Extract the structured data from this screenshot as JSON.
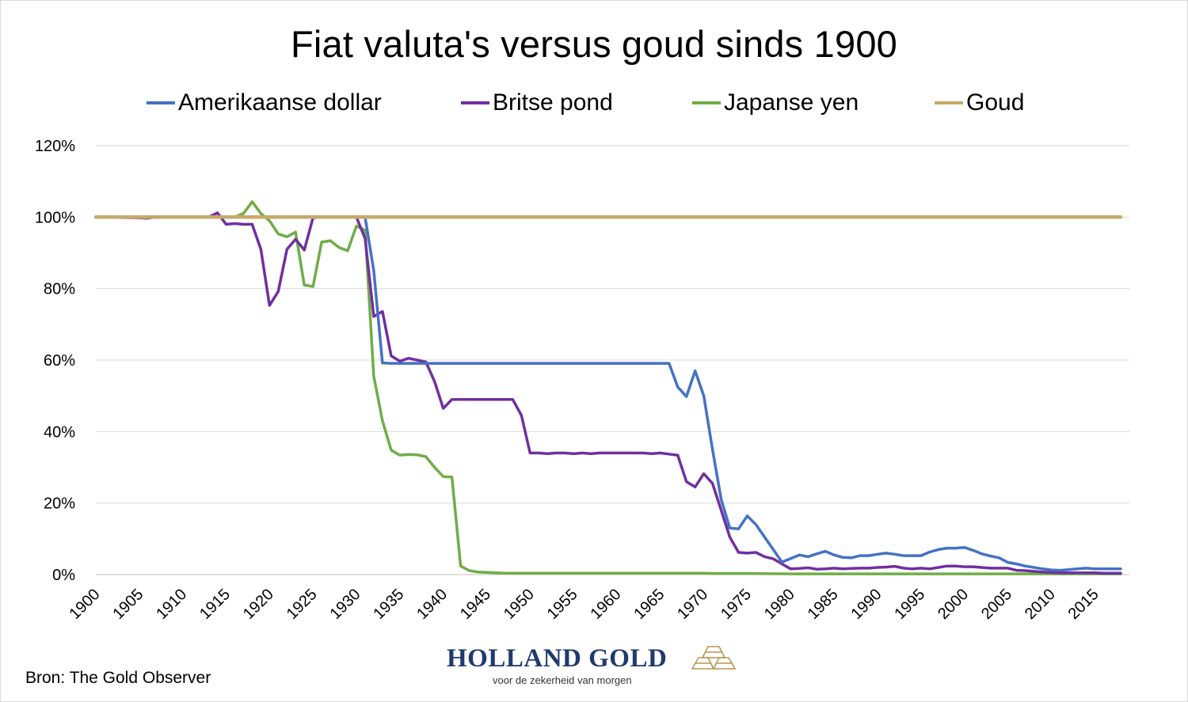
{
  "chart_data": {
    "type": "line",
    "title": "Fiat valuta's versus goud sinds 1900",
    "xlabel": "",
    "ylabel": "",
    "xlim": [
      1900,
      2019
    ],
    "ylim": [
      0,
      120
    ],
    "x_ticks": [
      "1900",
      "1905",
      "1910",
      "1915",
      "1920",
      "1925",
      "1930",
      "1935",
      "1940",
      "1945",
      "1950",
      "1955",
      "1960",
      "1965",
      "1970",
      "1975",
      "1980",
      "1985",
      "1990",
      "1995",
      "2000",
      "2005",
      "2010",
      "2015"
    ],
    "y_ticks": [
      "0%",
      "20%",
      "40%",
      "60%",
      "80%",
      "100%",
      "120%"
    ],
    "grid": true,
    "legend": "top",
    "series": [
      {
        "name": "Amerikaanse dollar",
        "color": "#4472c4",
        "points": [
          [
            1900,
            100
          ],
          [
            1931,
            100
          ],
          [
            1932,
            85
          ],
          [
            1933,
            59.2
          ],
          [
            1934,
            59.1
          ],
          [
            1966,
            59.1
          ],
          [
            1967,
            52.5
          ],
          [
            1968,
            49.8
          ],
          [
            1969,
            57
          ],
          [
            1970,
            50
          ],
          [
            1971,
            35
          ],
          [
            1972,
            21
          ],
          [
            1973,
            13
          ],
          [
            1974,
            12.8
          ],
          [
            1975,
            16.4
          ],
          [
            1976,
            14
          ],
          [
            1977,
            10.5
          ],
          [
            1978,
            7
          ],
          [
            1979,
            3.5
          ],
          [
            1980,
            4.5
          ],
          [
            1981,
            5.5
          ],
          [
            1982,
            5
          ],
          [
            1983,
            5.8
          ],
          [
            1984,
            6.5
          ],
          [
            1985,
            5.5
          ],
          [
            1986,
            4.8
          ],
          [
            1987,
            4.7
          ],
          [
            1988,
            5.3
          ],
          [
            1989,
            5.3
          ],
          [
            1990,
            5.7
          ],
          [
            1991,
            6
          ],
          [
            1992,
            5.7
          ],
          [
            1993,
            5.3
          ],
          [
            1994,
            5.3
          ],
          [
            1995,
            5.3
          ],
          [
            1996,
            6.3
          ],
          [
            1997,
            7
          ],
          [
            1998,
            7.4
          ],
          [
            1999,
            7.4
          ],
          [
            2000,
            7.6
          ],
          [
            2001,
            6.8
          ],
          [
            2002,
            5.8
          ],
          [
            2003,
            5.2
          ],
          [
            2004,
            4.7
          ],
          [
            2005,
            3.4
          ],
          [
            2006,
            3
          ],
          [
            2007,
            2.4
          ],
          [
            2008,
            2
          ],
          [
            2009,
            1.6
          ],
          [
            2010,
            1.3
          ],
          [
            2011,
            1.2
          ],
          [
            2012,
            1.4
          ],
          [
            2013,
            1.6
          ],
          [
            2014,
            1.8
          ],
          [
            2015,
            1.6
          ],
          [
            2016,
            1.6
          ],
          [
            2017,
            1.6
          ],
          [
            2018,
            1.6
          ]
        ]
      },
      {
        "name": "Britse pond",
        "color": "#7030a0",
        "points": [
          [
            1900,
            100
          ],
          [
            1905,
            99.8
          ],
          [
            1906,
            99.7
          ],
          [
            1907,
            100
          ],
          [
            1913,
            100
          ],
          [
            1914,
            101.2
          ],
          [
            1915,
            98
          ],
          [
            1916,
            98.2
          ],
          [
            1917,
            98
          ],
          [
            1918,
            98
          ],
          [
            1919,
            91
          ],
          [
            1920,
            75.3
          ],
          [
            1921,
            79.2
          ],
          [
            1922,
            91
          ],
          [
            1923,
            93.8
          ],
          [
            1924,
            90.8
          ],
          [
            1925,
            99.8
          ],
          [
            1926,
            100
          ],
          [
            1930,
            100
          ],
          [
            1931,
            94
          ],
          [
            1932,
            72.2
          ],
          [
            1933,
            73.6
          ],
          [
            1934,
            61.2
          ],
          [
            1935,
            59.7
          ],
          [
            1936,
            60.5
          ],
          [
            1937,
            60
          ],
          [
            1938,
            59.5
          ],
          [
            1939,
            54
          ],
          [
            1940,
            46.5
          ],
          [
            1941,
            49
          ],
          [
            1942,
            49
          ],
          [
            1948,
            49
          ],
          [
            1949,
            44.5
          ],
          [
            1950,
            34
          ],
          [
            1951,
            34
          ],
          [
            1952,
            33.8
          ],
          [
            1953,
            34
          ],
          [
            1954,
            34
          ],
          [
            1955,
            33.8
          ],
          [
            1956,
            34
          ],
          [
            1957,
            33.8
          ],
          [
            1958,
            34
          ],
          [
            1963,
            34
          ],
          [
            1964,
            33.8
          ],
          [
            1965,
            34
          ],
          [
            1966,
            33.7
          ],
          [
            1967,
            33.4
          ],
          [
            1968,
            26
          ],
          [
            1969,
            24.5
          ],
          [
            1970,
            28.2
          ],
          [
            1971,
            25.5
          ],
          [
            1972,
            18
          ],
          [
            1973,
            10.5
          ],
          [
            1974,
            6.2
          ],
          [
            1975,
            6
          ],
          [
            1976,
            6.2
          ],
          [
            1977,
            5
          ],
          [
            1978,
            4.4
          ],
          [
            1979,
            3
          ],
          [
            1980,
            1.6
          ],
          [
            1981,
            1.7
          ],
          [
            1982,
            1.9
          ],
          [
            1983,
            1.5
          ],
          [
            1984,
            1.6
          ],
          [
            1985,
            1.8
          ],
          [
            1986,
            1.6
          ],
          [
            1987,
            1.7
          ],
          [
            1988,
            1.8
          ],
          [
            1989,
            1.8
          ],
          [
            1990,
            2
          ],
          [
            1991,
            2.1
          ],
          [
            1992,
            2.3
          ],
          [
            1993,
            1.8
          ],
          [
            1994,
            1.6
          ],
          [
            1995,
            1.8
          ],
          [
            1996,
            1.6
          ],
          [
            1997,
            2
          ],
          [
            1998,
            2.4
          ],
          [
            1999,
            2.4
          ],
          [
            2000,
            2.2
          ],
          [
            2001,
            2.2
          ],
          [
            2002,
            2
          ],
          [
            2003,
            1.8
          ],
          [
            2004,
            1.8
          ],
          [
            2005,
            1.8
          ],
          [
            2006,
            1.2
          ],
          [
            2007,
            1.1
          ],
          [
            2008,
            0.9
          ],
          [
            2009,
            0.7
          ],
          [
            2010,
            0.6
          ],
          [
            2011,
            0.5
          ],
          [
            2012,
            0.5
          ],
          [
            2013,
            0.5
          ],
          [
            2014,
            0.5
          ],
          [
            2015,
            0.5
          ],
          [
            2016,
            0.4
          ],
          [
            2017,
            0.4
          ],
          [
            2018,
            0.4
          ]
        ]
      },
      {
        "name": "Japanse yen",
        "color": "#70ad47",
        "points": [
          [
            1900,
            100
          ],
          [
            1915,
            100
          ],
          [
            1916,
            100
          ],
          [
            1917,
            101
          ],
          [
            1918,
            104.3
          ],
          [
            1919,
            101
          ],
          [
            1920,
            99
          ],
          [
            1921,
            95.3
          ],
          [
            1922,
            94.5
          ],
          [
            1923,
            95.8
          ],
          [
            1924,
            81
          ],
          [
            1925,
            80.6
          ],
          [
            1926,
            93
          ],
          [
            1927,
            93.4
          ],
          [
            1928,
            91.5
          ],
          [
            1929,
            90.6
          ],
          [
            1930,
            97.5
          ],
          [
            1931,
            96.3
          ],
          [
            1932,
            55.5
          ],
          [
            1933,
            43
          ],
          [
            1934,
            34.8
          ],
          [
            1935,
            33.4
          ],
          [
            1936,
            33.6
          ],
          [
            1937,
            33.5
          ],
          [
            1938,
            33
          ],
          [
            1939,
            30
          ],
          [
            1940,
            27.4
          ],
          [
            1941,
            27.3
          ],
          [
            1942,
            2.4
          ],
          [
            1943,
            1.1
          ],
          [
            1944,
            0.7
          ],
          [
            1945,
            0.6
          ],
          [
            1946,
            0.5
          ],
          [
            1947,
            0.4
          ],
          [
            1970,
            0.4
          ],
          [
            1971,
            0.3
          ],
          [
            1975,
            0.3
          ],
          [
            1980,
            0.2
          ],
          [
            2018,
            0.2
          ]
        ]
      },
      {
        "name": "Goud",
        "color": "#c8a96a",
        "points": [
          [
            1900,
            100
          ],
          [
            2018,
            100
          ]
        ]
      }
    ]
  },
  "source": "Bron: The Gold Observer",
  "brand": {
    "name": "HOLLAND GOLD",
    "tagline": "voor de zekerheid van morgen",
    "logo_color": "#b8964e",
    "name_color": "#1f3a6e"
  }
}
